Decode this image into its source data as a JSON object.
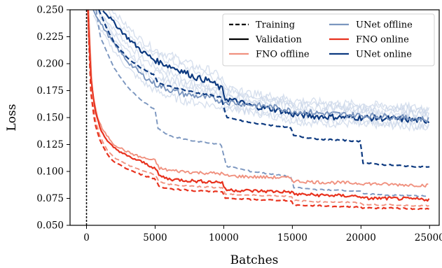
{
  "chart_data": {
    "type": "line",
    "xlabel": "Batches",
    "ylabel": "Loss",
    "xlim": [
      -1200,
      25700
    ],
    "ylim": [
      0.05,
      0.25
    ],
    "xticks": [
      0,
      5000,
      10000,
      15000,
      20000,
      25000
    ],
    "xtick_labels": [
      "0",
      "5000",
      "10000",
      "15000",
      "20000",
      "25000"
    ],
    "yticks": [
      0.05,
      0.075,
      0.1,
      0.125,
      0.15,
      0.175,
      0.2,
      0.225,
      0.25
    ],
    "ytick_labels": [
      "0.050",
      "0.075",
      "0.100",
      "0.125",
      "0.150",
      "0.175",
      "0.200",
      "0.225",
      "0.250"
    ],
    "grid": false,
    "legend_placement": "top-right",
    "vline_x": 0,
    "colors": {
      "fno_offline": "#f0917f",
      "fno_online": "#e8321e",
      "unet_offline": "#7b96bf",
      "unet_online": "#0d3a80",
      "run_background": "#c9d5e8"
    },
    "legend": [
      {
        "label": "Training",
        "style": "dashed",
        "color": "#000000"
      },
      {
        "label": "Validation",
        "style": "solid",
        "color": "#000000"
      },
      {
        "label": "FNO offline",
        "style": "solid",
        "color": "#f0917f"
      },
      {
        "label": "UNet offline",
        "style": "solid",
        "color": "#7b96bf"
      },
      {
        "label": "FNO online",
        "style": "solid",
        "color": "#e8321e"
      },
      {
        "label": "UNet online",
        "style": "solid",
        "color": "#0d3a80"
      }
    ],
    "series": [
      {
        "model": "UNet online",
        "split": "Validation",
        "x": [
          1200,
          2000,
          3000,
          4000,
          5000,
          6000,
          7000,
          8000,
          9000,
          9900,
          10100,
          12000,
          14000,
          15000,
          17000,
          20000,
          22000,
          25000
        ],
        "y": [
          0.25,
          0.238,
          0.224,
          0.212,
          0.203,
          0.198,
          0.193,
          0.187,
          0.184,
          0.176,
          0.168,
          0.161,
          0.157,
          0.153,
          0.151,
          0.15,
          0.149,
          0.147
        ]
      },
      {
        "model": "UNet offline",
        "split": "Validation",
        "x": [
          500,
          1000,
          2000,
          3000,
          4000,
          5000,
          6000,
          7000,
          8000,
          9000,
          10000,
          12000,
          14000,
          15000,
          17000,
          20000,
          22000,
          25000
        ],
        "y": [
          0.25,
          0.238,
          0.218,
          0.202,
          0.19,
          0.181,
          0.176,
          0.172,
          0.17,
          0.168,
          0.165,
          0.162,
          0.159,
          0.156,
          0.154,
          0.152,
          0.151,
          0.148
        ]
      },
      {
        "model": "UNet online",
        "split": "Training",
        "x": [
          900,
          1500,
          2000,
          3000,
          4000,
          5000,
          5200,
          6000,
          8000,
          9800,
          10000,
          10200,
          12000,
          14000,
          14900,
          15100,
          17000,
          20000,
          20100,
          22000,
          25000
        ],
        "y": [
          0.25,
          0.232,
          0.22,
          0.205,
          0.196,
          0.189,
          0.182,
          0.179,
          0.173,
          0.169,
          0.16,
          0.15,
          0.145,
          0.142,
          0.14,
          0.133,
          0.13,
          0.128,
          0.108,
          0.106,
          0.104
        ]
      },
      {
        "model": "UNet offline",
        "split": "Training",
        "x": [
          700,
          1000,
          2000,
          3000,
          4000,
          5000,
          5200,
          6000,
          8000,
          9800,
          10000,
          10200,
          12000,
          14900,
          15100,
          17000,
          20000,
          20200,
          22000,
          25000
        ],
        "y": [
          0.25,
          0.225,
          0.196,
          0.178,
          0.166,
          0.157,
          0.14,
          0.133,
          0.128,
          0.125,
          0.115,
          0.105,
          0.1,
          0.095,
          0.085,
          0.083,
          0.082,
          0.079,
          0.078,
          0.077
        ]
      },
      {
        "model": "FNO offline",
        "split": "Validation",
        "x": [
          150,
          400,
          800,
          1200,
          2000,
          3000,
          4000,
          5000,
          5300,
          6000,
          8000,
          9900,
          10100,
          12000,
          14900,
          15100,
          17000,
          20000,
          22000,
          25000
        ],
        "y": [
          0.25,
          0.175,
          0.15,
          0.138,
          0.125,
          0.118,
          0.113,
          0.11,
          0.103,
          0.101,
          0.099,
          0.098,
          0.096,
          0.095,
          0.094,
          0.091,
          0.09,
          0.089,
          0.088,
          0.087
        ]
      },
      {
        "model": "FNO online",
        "split": "Validation",
        "x": [
          100,
          300,
          600,
          1000,
          1500,
          2000,
          3000,
          4000,
          5000,
          5300,
          6000,
          8000,
          9900,
          10100,
          12000,
          14900,
          15100,
          17000,
          20000,
          20100,
          22000,
          25000
        ],
        "y": [
          0.25,
          0.19,
          0.158,
          0.14,
          0.128,
          0.122,
          0.114,
          0.109,
          0.103,
          0.096,
          0.093,
          0.091,
          0.09,
          0.083,
          0.082,
          0.081,
          0.079,
          0.078,
          0.077,
          0.075,
          0.075,
          0.074
        ]
      },
      {
        "model": "FNO offline",
        "split": "Training",
        "x": [
          100,
          300,
          600,
          1000,
          1500,
          2000,
          3000,
          4000,
          5000,
          5300,
          6000,
          8000,
          9900,
          10100,
          12000,
          14900,
          15100,
          17000,
          20000,
          20100,
          22000,
          25000
        ],
        "y": [
          0.25,
          0.18,
          0.15,
          0.132,
          0.12,
          0.113,
          0.106,
          0.101,
          0.097,
          0.09,
          0.088,
          0.086,
          0.085,
          0.079,
          0.078,
          0.077,
          0.073,
          0.072,
          0.071,
          0.069,
          0.069,
          0.068
        ]
      },
      {
        "model": "FNO online",
        "split": "Training",
        "x": [
          100,
          300,
          600,
          1000,
          1500,
          2000,
          3000,
          4000,
          5000,
          5300,
          6000,
          8000,
          9900,
          10100,
          12000,
          14900,
          15100,
          17000,
          20000,
          20100,
          22000,
          25000
        ],
        "y": [
          0.25,
          0.175,
          0.145,
          0.128,
          0.116,
          0.109,
          0.102,
          0.097,
          0.093,
          0.086,
          0.084,
          0.082,
          0.081,
          0.075,
          0.074,
          0.073,
          0.069,
          0.068,
          0.067,
          0.066,
          0.066,
          0.065
        ]
      }
    ]
  }
}
